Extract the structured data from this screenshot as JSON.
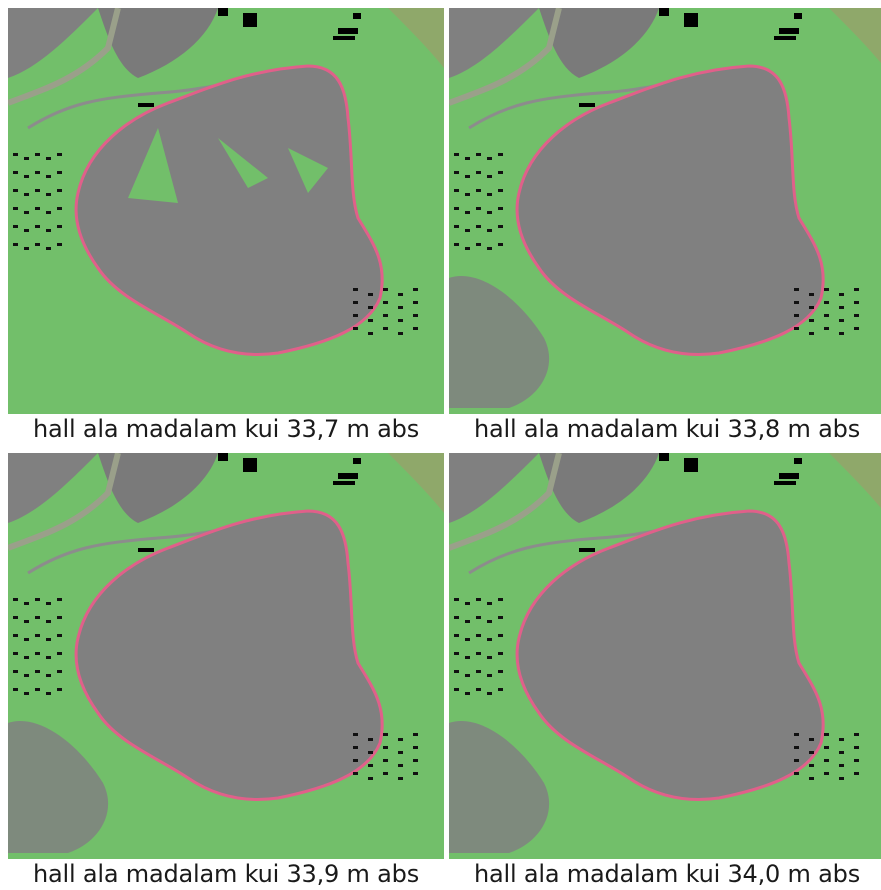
{
  "panels": [
    {
      "caption": "hall ala madalam kui 33,7 m abs"
    },
    {
      "caption": "hall ala madalam kui 33,8 m abs"
    },
    {
      "caption": "hall ala madalam kui 33,9 m abs"
    },
    {
      "caption": "hall ala madalam kui 34,0 m abs"
    }
  ]
}
